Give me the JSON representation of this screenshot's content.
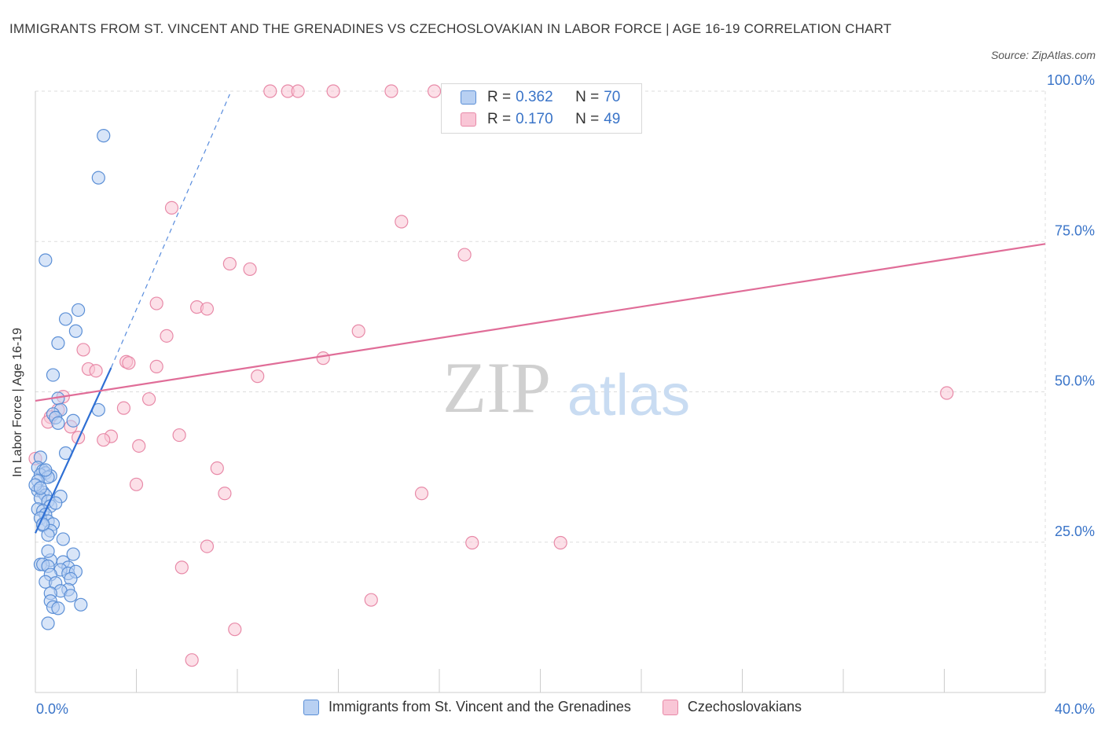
{
  "header": {
    "title": "IMMIGRANTS FROM ST. VINCENT AND THE GRENADINES VS CZECHOSLOVAKIAN IN LABOR FORCE | AGE 16-19 CORRELATION CHART",
    "source": "Source: ZipAtlas.com"
  },
  "legend": {
    "series1": {
      "r_label": "R =",
      "r_value": "0.362",
      "n_label": "N =",
      "n_value": "70"
    },
    "series2": {
      "r_label": "R =",
      "r_value": "0.170",
      "n_label": "N =",
      "n_value": "49"
    }
  },
  "colors": {
    "blue_fill": "#b8d0f2",
    "blue_stroke": "#5b8fd6",
    "blue_line": "#2e6fd4",
    "pink_fill": "#f9c6d6",
    "pink_stroke": "#e88aa8",
    "pink_line": "#e06d98",
    "axis_text": "#3a74c8",
    "grid": "#dddddd"
  },
  "watermark": {
    "zip": "ZIP",
    "atlas": "atlas"
  },
  "chart_data": {
    "type": "scatter",
    "ylabel": "In Labor Force | Age 16-19",
    "xlim": [
      0,
      40
    ],
    "ylim": [
      0,
      105
    ],
    "x_tick_labels": [
      "0.0%",
      "40.0%"
    ],
    "y_ticks": [
      25,
      50,
      75,
      100
    ],
    "y_tick_labels": [
      "25.0%",
      "50.0%",
      "75.0%",
      "100.0%"
    ],
    "grid": true,
    "legend_position": "top-center",
    "series": [
      {
        "name": "Immigrants from St. Vincent and the Grenadines",
        "color": "blue",
        "trend": {
          "x": [
            0.0,
            3.0
          ],
          "y": [
            26.5,
            54.0
          ],
          "dashed_extension": {
            "x": [
              3.0,
              7.7
            ],
            "y": [
              54.0,
              99.5
            ]
          }
        },
        "points": [
          [
            2.7,
            92.6
          ],
          [
            2.5,
            85.6
          ],
          [
            0.4,
            71.9
          ],
          [
            1.7,
            63.6
          ],
          [
            1.2,
            62.1
          ],
          [
            1.6,
            60.1
          ],
          [
            0.9,
            58.1
          ],
          [
            0.7,
            52.8
          ],
          [
            0.9,
            48.9
          ],
          [
            1.0,
            47.0
          ],
          [
            2.5,
            47.0
          ],
          [
            0.7,
            46.3
          ],
          [
            0.8,
            45.7
          ],
          [
            1.5,
            45.2
          ],
          [
            0.9,
            44.8
          ],
          [
            1.2,
            39.8
          ],
          [
            0.2,
            39.1
          ],
          [
            0.1,
            37.4
          ],
          [
            0.3,
            36.9
          ],
          [
            0.4,
            36.5
          ],
          [
            0.2,
            36.2
          ],
          [
            0.6,
            36.0
          ],
          [
            0.5,
            35.8
          ],
          [
            0.1,
            35.2
          ],
          [
            0.1,
            33.6
          ],
          [
            0.3,
            33.3
          ],
          [
            0.4,
            32.8
          ],
          [
            0.2,
            32.3
          ],
          [
            1.0,
            32.6
          ],
          [
            0.5,
            31.8
          ],
          [
            0.6,
            31.0
          ],
          [
            0.1,
            30.5
          ],
          [
            0.3,
            30.2
          ],
          [
            0.4,
            29.6
          ],
          [
            0.2,
            29.0
          ],
          [
            0.5,
            28.5
          ],
          [
            0.7,
            28.0
          ],
          [
            0.3,
            27.8
          ],
          [
            0.6,
            26.9
          ],
          [
            0.5,
            26.2
          ],
          [
            1.5,
            23.0
          ],
          [
            0.6,
            22.0
          ],
          [
            1.1,
            21.7
          ],
          [
            0.2,
            21.3
          ],
          [
            0.3,
            21.3
          ],
          [
            0.5,
            21.0
          ],
          [
            1.3,
            20.8
          ],
          [
            1.0,
            20.4
          ],
          [
            1.3,
            19.8
          ],
          [
            1.6,
            20.1
          ],
          [
            0.6,
            19.6
          ],
          [
            1.4,
            18.9
          ],
          [
            0.4,
            18.4
          ],
          [
            0.8,
            18.2
          ],
          [
            1.3,
            17.1
          ],
          [
            1.0,
            16.9
          ],
          [
            0.6,
            16.5
          ],
          [
            1.4,
            16.1
          ],
          [
            0.6,
            15.2
          ],
          [
            1.8,
            14.6
          ],
          [
            0.7,
            14.2
          ],
          [
            0.9,
            14.0
          ],
          [
            0.5,
            11.5
          ],
          [
            0.0,
            34.5
          ],
          [
            0.2,
            34.0
          ],
          [
            0.4,
            37.0
          ],
          [
            0.8,
            31.5
          ],
          [
            0.3,
            28.0
          ],
          [
            1.1,
            25.5
          ],
          [
            0.5,
            23.5
          ]
        ]
      },
      {
        "name": "Czechoslovakians",
        "color": "pink",
        "trend": {
          "x": [
            0.0,
            40.0
          ],
          "y": [
            48.5,
            74.6
          ]
        },
        "points": [
          [
            9.3,
            100.0
          ],
          [
            10.0,
            100.0
          ],
          [
            10.4,
            100.0
          ],
          [
            11.8,
            100.0
          ],
          [
            14.1,
            100.0
          ],
          [
            15.8,
            100.0
          ],
          [
            5.4,
            80.6
          ],
          [
            14.5,
            78.3
          ],
          [
            17.0,
            72.8
          ],
          [
            7.7,
            71.3
          ],
          [
            8.5,
            70.4
          ],
          [
            4.8,
            64.7
          ],
          [
            6.4,
            64.1
          ],
          [
            6.8,
            63.8
          ],
          [
            12.8,
            60.1
          ],
          [
            5.2,
            59.3
          ],
          [
            1.9,
            57.0
          ],
          [
            11.4,
            55.6
          ],
          [
            3.6,
            55.0
          ],
          [
            3.7,
            54.8
          ],
          [
            4.8,
            54.2
          ],
          [
            2.1,
            53.8
          ],
          [
            2.4,
            53.5
          ],
          [
            8.8,
            52.6
          ],
          [
            36.1,
            49.8
          ],
          [
            1.1,
            49.2
          ],
          [
            4.5,
            48.8
          ],
          [
            3.5,
            47.3
          ],
          [
            0.9,
            47.0
          ],
          [
            0.6,
            45.8
          ],
          [
            0.5,
            45.0
          ],
          [
            1.4,
            44.2
          ],
          [
            1.7,
            42.4
          ],
          [
            3.0,
            42.6
          ],
          [
            2.7,
            42.0
          ],
          [
            5.7,
            42.8
          ],
          [
            4.1,
            41.0
          ],
          [
            0.0,
            38.9
          ],
          [
            7.2,
            37.3
          ],
          [
            4.0,
            34.6
          ],
          [
            7.5,
            33.1
          ],
          [
            15.3,
            33.1
          ],
          [
            17.3,
            24.9
          ],
          [
            20.8,
            24.9
          ],
          [
            6.8,
            24.3
          ],
          [
            5.8,
            20.8
          ],
          [
            13.3,
            15.4
          ],
          [
            7.9,
            10.5
          ],
          [
            6.2,
            5.4
          ]
        ]
      }
    ]
  }
}
